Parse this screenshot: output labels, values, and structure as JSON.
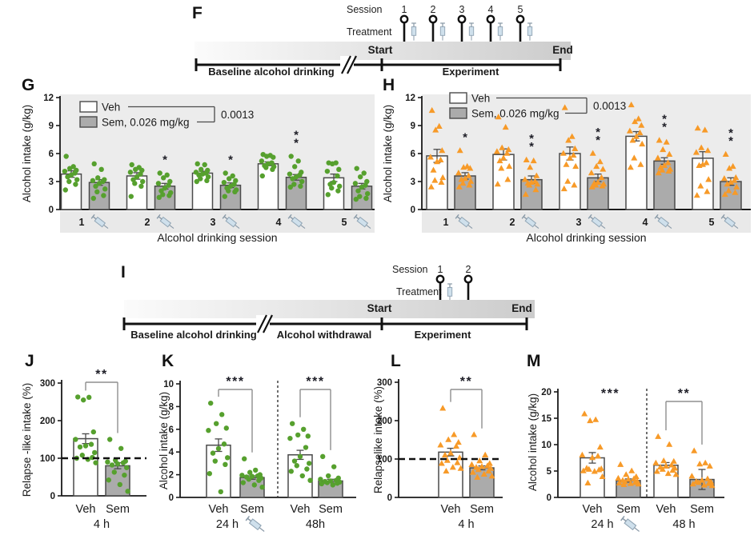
{
  "colors": {
    "green": "#56a02e",
    "orange": "#f79a28",
    "bar_white": "#ffffff",
    "bar_gray": "#ababab",
    "bar_border": "#4a4a4a",
    "plot_bg": "#ececec",
    "band_bg": "#e9e9e9",
    "axis": "#1a1a1a",
    "bracket": "#8f8f8f",
    "sig": "#1d1d26",
    "timeline_grad_start": "#fbfbfb",
    "timeline_grad_end": "#cccccc"
  },
  "timeline_f": {
    "label": "F",
    "session_label": "Session",
    "treatment_label": "Treatment",
    "sessions": [
      "1",
      "2",
      "3",
      "4",
      "5"
    ],
    "start_label": "Start",
    "end_label": "End",
    "phase1": "Baseline alcohol drinking",
    "phase2": "Experiment"
  },
  "timeline_i": {
    "label": "I",
    "session_label": "Session",
    "treatment_label": "Treatment",
    "sessions": [
      "1",
      "2"
    ],
    "start_label": "Start",
    "end_label": "End",
    "phase1": "Baseline alcohol drinking",
    "phase2": "Alcohol withdrawal",
    "phase3": "Experiment"
  },
  "chart_data": [
    {
      "id": "G",
      "panel_label": "G",
      "type": "bar",
      "ylabel": "Alcohol intake (g/kg)",
      "xlabel": "Alcohol drinking session",
      "ylim": [
        0,
        12
      ],
      "yticks": [
        0,
        3,
        6,
        9,
        12
      ],
      "legend": {
        "veh_label": "Veh",
        "sem_label": "Sem, 0.026 mg/kg",
        "p_value": "0.0013"
      },
      "marker": "circle",
      "point_color": "#56a02e",
      "categories": [
        "1",
        "2",
        "3",
        "4",
        "5"
      ],
      "veh": {
        "name": "Veh",
        "values": [
          3.8,
          3.6,
          3.9,
          4.9,
          3.4
        ],
        "errors": [
          0.35,
          0.35,
          0.2,
          0.2,
          0.4
        ],
        "points": [
          [
            5.7,
            4.6,
            4.4,
            4.2,
            4.1,
            3.9,
            3.7,
            3.5,
            3.2,
            3.0,
            2.7,
            2.1
          ],
          [
            4.8,
            4.5,
            4.3,
            4.2,
            4.0,
            3.8,
            3.5,
            3.2,
            3.0,
            2.8,
            2.5,
            1.4
          ],
          [
            4.9,
            4.8,
            4.3,
            4.2,
            4.0,
            3.9,
            3.8,
            3.7,
            3.5,
            3.3,
            3.1,
            3.0
          ],
          [
            5.9,
            5.8,
            5.7,
            5.6,
            5.2,
            5.0,
            4.9,
            4.7,
            4.6,
            4.5,
            4.3,
            3.6
          ],
          [
            5.0,
            5.0,
            4.9,
            4.3,
            4.1,
            3.6,
            2.9,
            2.7,
            2.5,
            2.3,
            2.0,
            1.6
          ]
        ]
      },
      "sem": {
        "name": "Sem, 0.026 mg/kg",
        "values": [
          2.9,
          2.5,
          2.6,
          3.45,
          2.5
        ],
        "errors": [
          0.3,
          0.3,
          0.25,
          0.3,
          0.3
        ],
        "sig": [
          "",
          "*",
          "*",
          "**",
          ""
        ],
        "points": [
          [
            4.9,
            4.3,
            3.4,
            3.2,
            3.1,
            3.0,
            2.8,
            2.5,
            2.2,
            1.9,
            1.5,
            1.2
          ],
          [
            3.9,
            3.7,
            3.4,
            3.0,
            2.8,
            2.6,
            2.3,
            2.0,
            1.8,
            1.6,
            1.5,
            1.3
          ],
          [
            3.9,
            3.6,
            3.3,
            3.1,
            2.9,
            2.7,
            2.5,
            2.3,
            2.1,
            2.0,
            1.9,
            1.4
          ],
          [
            5.7,
            5.2,
            4.6,
            4.0,
            3.8,
            3.7,
            3.5,
            3.3,
            3.0,
            2.7,
            2.5,
            2.4
          ],
          [
            4.4,
            3.9,
            3.5,
            3.0,
            2.8,
            2.6,
            2.4,
            2.0,
            1.7,
            1.4,
            1.2,
            1.1
          ]
        ]
      }
    },
    {
      "id": "H",
      "panel_label": "H",
      "type": "bar",
      "ylabel": "Alcohol intake (g/kg)",
      "xlabel": "Alcohol drinking session",
      "ylim": [
        0,
        12
      ],
      "yticks": [
        0,
        3,
        6,
        9,
        12
      ],
      "legend": {
        "veh_label": "Veh",
        "sem_label": "Sem, 0.026 mg/kg",
        "p_value": "0.0013"
      },
      "marker": "triangle",
      "point_color": "#f79a28",
      "categories": [
        "1",
        "2",
        "3",
        "4",
        "5"
      ],
      "veh": {
        "name": "Veh",
        "values": [
          5.75,
          5.9,
          6.0,
          7.85,
          5.5
        ],
        "errors": [
          0.7,
          0.6,
          0.7,
          0.5,
          0.7
        ],
        "points": [
          [
            10.6,
            8.9,
            8.5,
            6.3,
            5.6,
            5.3,
            5.1,
            4.2,
            3.4,
            3.1,
            2.9,
            2.4
          ],
          [
            9.9,
            8.8,
            6.6,
            6.4,
            6.2,
            6.0,
            5.5,
            5.2,
            4.6,
            4.4,
            3.2,
            2.7
          ],
          [
            10.9,
            7.8,
            7.4,
            6.5,
            6.0,
            5.8,
            5.5,
            4.8,
            4.6,
            3.0,
            2.6,
            2.2
          ],
          [
            11.2,
            9.7,
            9.4,
            9.0,
            8.4,
            8.2,
            7.8,
            7.4,
            7.0,
            5.5,
            4.8,
            4.5
          ],
          [
            8.7,
            8.5,
            6.6,
            6.3,
            6.1,
            5.0,
            4.8,
            4.7,
            3.2,
            2.5,
            1.9,
            1.5
          ]
        ]
      },
      "sem": {
        "name": "Sem, 0.026 mg/kg",
        "values": [
          3.6,
          3.2,
          3.4,
          5.2,
          3.0
        ],
        "errors": [
          0.35,
          0.4,
          0.4,
          0.35,
          0.4
        ],
        "sig": [
          "*",
          "**",
          "**",
          "**",
          "**"
        ],
        "points": [
          [
            6.3,
            4.6,
            4.5,
            4.4,
            3.9,
            3.6,
            3.3,
            3.2,
            3.0,
            2.8,
            2.6,
            2.4
          ],
          [
            5.3,
            5.2,
            4.5,
            3.6,
            3.2,
            3.0,
            2.9,
            2.8,
            2.7,
            2.6,
            2.1,
            1.6
          ],
          [
            6.0,
            5.1,
            4.6,
            4.3,
            3.9,
            3.4,
            2.9,
            2.8,
            2.7,
            2.6,
            2.5,
            2.4
          ],
          [
            7.4,
            7.2,
            6.4,
            5.9,
            5.5,
            5.0,
            4.7,
            4.5,
            4.3,
            4.2,
            4.1,
            3.9
          ],
          [
            5.9,
            4.6,
            4.4,
            3.4,
            3.3,
            3.1,
            2.9,
            2.7,
            2.4,
            2.0,
            1.8,
            1.6
          ]
        ]
      }
    },
    {
      "id": "J",
      "panel_label": "J",
      "type": "bar",
      "ylabel": "Relapse -like intake (%)",
      "ylim": [
        0,
        300
      ],
      "yticks": [
        0,
        100,
        200,
        300
      ],
      "dashed_line_y": 100,
      "marker": "circle",
      "point_color": "#56a02e",
      "groups": [
        {
          "time_label": "4 h",
          "syringe": false,
          "sig": "**",
          "bracket": true,
          "bars": [
            {
              "name": "Veh",
              "value": 152,
              "error": 13,
              "points": [
                263,
                262,
                255,
                170,
                150,
                137,
                133,
                130,
                115,
                108,
                102,
                100,
                97,
                88
              ]
            },
            {
              "name": "Sem",
              "value": 80,
              "error": 8,
              "points": [
                150,
                126,
                95,
                92,
                90,
                88,
                85,
                82,
                75,
                63,
                55,
                42,
                30,
                12
              ]
            }
          ]
        }
      ]
    },
    {
      "id": "K",
      "panel_label": "K",
      "type": "bar",
      "ylabel": "Alcohol intake (g/kg)",
      "ylim": [
        0,
        10
      ],
      "yticks": [
        0,
        2,
        4,
        6,
        8,
        10
      ],
      "marker": "circle",
      "point_color": "#56a02e",
      "groups": [
        {
          "time_label": "24 h",
          "syringe": true,
          "sig": "***",
          "bracket": true,
          "bars": [
            {
              "name": "Veh",
              "value": 4.6,
              "error": 0.55,
              "points": [
                8.3,
                7.3,
                6.5,
                6.1,
                5.9,
                4.7,
                4.3,
                3.9,
                3.5,
                3.2,
                2.9,
                2.1,
                0.5
              ]
            },
            {
              "name": "Sem",
              "value": 1.75,
              "error": 0.15,
              "points": [
                3.4,
                2.4,
                2.2,
                2.0,
                1.95,
                1.9,
                1.85,
                1.8,
                1.7,
                1.6,
                1.5,
                1.3,
                1.1,
                0.9
              ]
            }
          ]
        },
        {
          "time_label": "48h",
          "syringe": false,
          "sig": "***",
          "bracket": true,
          "bars": [
            {
              "name": "Veh",
              "value": 3.75,
              "error": 0.4,
              "points": [
                6.5,
                6.0,
                5.5,
                5.4,
                5.2,
                4.4,
                3.6,
                3.2,
                3.0,
                2.8,
                2.5,
                2.3,
                1.9,
                1.5
              ]
            },
            {
              "name": "Sem",
              "value": 1.45,
              "error": 0.15,
              "points": [
                3.6,
                2.7,
                1.9,
                1.7,
                1.6,
                1.5,
                1.45,
                1.4,
                1.35,
                1.3,
                1.25,
                1.2,
                1.1
              ]
            }
          ]
        }
      ]
    },
    {
      "id": "L",
      "panel_label": "L",
      "type": "bar",
      "ylabel": "Relapselike  intake (%)",
      "ylim": [
        0,
        300
      ],
      "yticks": [
        0,
        100,
        200,
        300
      ],
      "dashed_line_y": 100,
      "marker": "triangle",
      "point_color": "#f79a28",
      "groups": [
        {
          "time_label": "4 h",
          "syringe": false,
          "sig": "**",
          "bracket": true,
          "bars": [
            {
              "name": "Veh",
              "value": 118,
              "error": 10,
              "points": [
                232,
                163,
                150,
                143,
                136,
                133,
                115,
                110,
                103,
                96,
                90,
                88,
                78,
                75,
                68
              ]
            },
            {
              "name": "Sem",
              "value": 77,
              "error": 5,
              "points": [
                163,
                110,
                95,
                88,
                85,
                82,
                80,
                78,
                75,
                72,
                68,
                65,
                60,
                55,
                52
              ]
            }
          ]
        }
      ]
    },
    {
      "id": "M",
      "panel_label": "M",
      "type": "bar",
      "ylabel": "Alcohol intake (g/kg)",
      "ylim": [
        0,
        20
      ],
      "yticks": [
        0,
        5,
        10,
        15,
        20
      ],
      "marker": "triangle",
      "point_color": "#f79a28",
      "groups": [
        {
          "time_label": "24 h",
          "syringe": true,
          "sig": "***",
          "bracket": false,
          "bars": [
            {
              "name": "Veh",
              "value": 7.5,
              "error": 1.0,
              "points": [
                15.8,
                14.7,
                14.5,
                9.5,
                8.0,
                7.8,
                7.5,
                5.5,
                5.4,
                5.3,
                5.2,
                5.0,
                4.9,
                3.9,
                2.7
              ]
            },
            {
              "name": "Sem",
              "value": 3.2,
              "error": 0.3,
              "points": [
                6.2,
                5.0,
                4.3,
                3.9,
                3.6,
                3.5,
                3.4,
                3.2,
                3.0,
                2.9,
                2.8,
                2.7,
                2.6,
                2.5,
                2.4
              ]
            }
          ]
        },
        {
          "time_label": "48 h",
          "syringe": false,
          "sig": "**",
          "bracket": true,
          "bars": [
            {
              "name": "Veh",
              "value": 6.1,
              "error": 0.5,
              "points": [
                11.5,
                10.0,
                6.9,
                6.8,
                6.5,
                6.1,
                5.9,
                5.7,
                5.5,
                5.3,
                5.1,
                4.9,
                4.5,
                4.3
              ]
            },
            {
              "name": "Sem",
              "value": 3.4,
              "error": 1.9,
              "points": [
                8.8,
                6.5,
                6.3,
                5.9,
                4.0,
                3.5,
                3.2,
                3.0,
                2.9,
                2.8,
                2.6,
                2.5,
                2.3,
                2.2
              ]
            }
          ]
        }
      ]
    }
  ]
}
